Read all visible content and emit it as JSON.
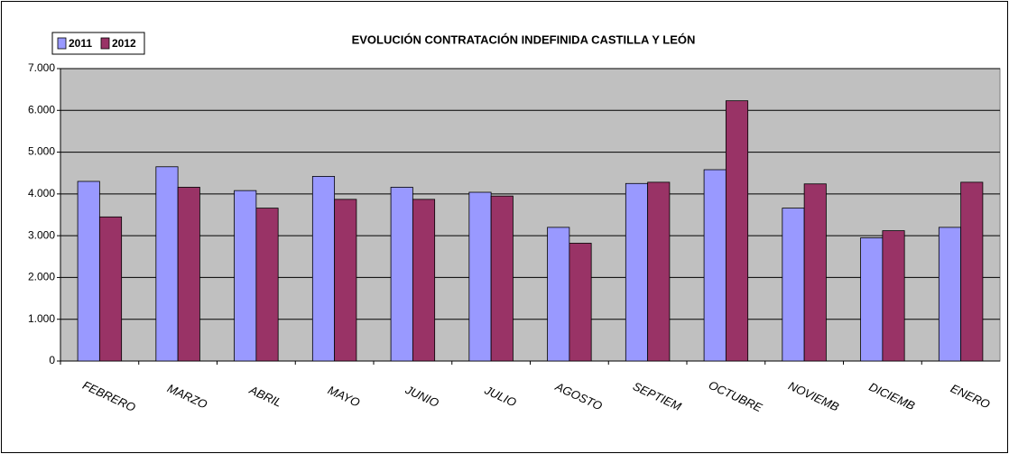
{
  "chart_data": {
    "type": "bar",
    "title": "EVOLUCIÓN CONTRATACIÓN INDEFINIDA CASTILLA Y LEÓN",
    "categories": [
      "FEBRERO",
      "MARZO",
      "ABRIL",
      "MAYO",
      "JUNIO",
      "JULIO",
      "AGOSTO",
      "SEPTIEM",
      "OCTUBRE",
      "NOVIEMB",
      "DICIEMB",
      "ENERO"
    ],
    "series": [
      {
        "name": "2011",
        "color": "#9999ff",
        "values": [
          4300,
          4650,
          4080,
          4420,
          4160,
          4040,
          3200,
          4250,
          4580,
          3660,
          2950,
          3200
        ]
      },
      {
        "name": "2012",
        "color": "#993366",
        "values": [
          3450,
          4160,
          3660,
          3870,
          3870,
          3950,
          2820,
          4280,
          6230,
          4240,
          3120,
          4280
        ]
      }
    ],
    "ylim": [
      0,
      7000
    ],
    "yticks": [
      0,
      {
        "value": 1000,
        "label": "1.000"
      },
      {
        "value": 2000,
        "label": "2.000"
      },
      {
        "value": 3000,
        "label": "3.000"
      },
      {
        "value": 4000,
        "label": "4.000"
      },
      {
        "value": 5000,
        "label": "5.000"
      },
      {
        "value": 6000,
        "label": "6.000"
      },
      {
        "value": 7000,
        "label": "7.000"
      }
    ],
    "grid": true,
    "legend": "top-left"
  }
}
